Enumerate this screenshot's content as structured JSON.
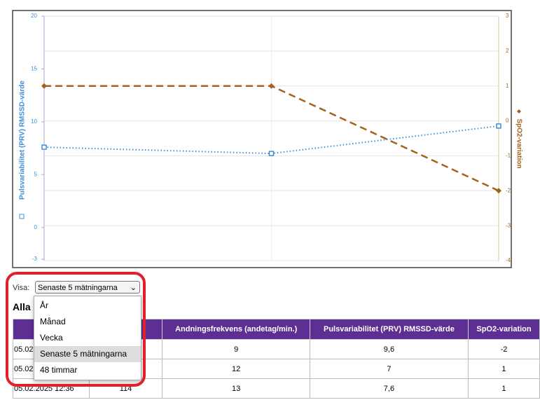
{
  "chart_data": {
    "type": "line",
    "categories": [
      null,
      null,
      null
    ],
    "series": [
      {
        "name": "Pulsvariabilitet (PRV) RMSSD-värde",
        "color": "#3d8fd8",
        "values": [
          7.6,
          7,
          9.6
        ]
      },
      {
        "name": "SpO2-variation",
        "color": "#a5621c",
        "values": [
          1,
          1,
          -2
        ],
        "axis": "y2"
      }
    ],
    "ylim": [
      -3,
      20
    ],
    "yticks": [
      -3,
      0,
      5,
      10,
      15,
      20
    ],
    "y2lim": [
      -4,
      3
    ],
    "y2ticks": [
      -4,
      -3,
      -2,
      -1,
      0,
      1,
      2,
      3
    ],
    "grid": true
  },
  "controls": {
    "filter_label": "Visa:",
    "selected": "Senaste 5 mätningarna",
    "options": [
      "År",
      "Månad",
      "Vecka",
      "Senaste 5 mätningarna",
      "48 timmar"
    ],
    "heading": "Alla"
  },
  "table": {
    "header": [
      "",
      "ut)",
      "Andningsfrekvens (andetag/min.)",
      "Pulsvariabilitet (PRV) RMSSD-värde",
      "SpO2-variation"
    ],
    "rows": [
      [
        "05.02",
        "",
        "9",
        "9,6",
        "-2"
      ],
      [
        "05.02",
        "",
        "12",
        "7",
        "1"
      ],
      [
        "05.02.2025 12:36",
        "114",
        "13",
        "7,6",
        "1"
      ]
    ]
  }
}
